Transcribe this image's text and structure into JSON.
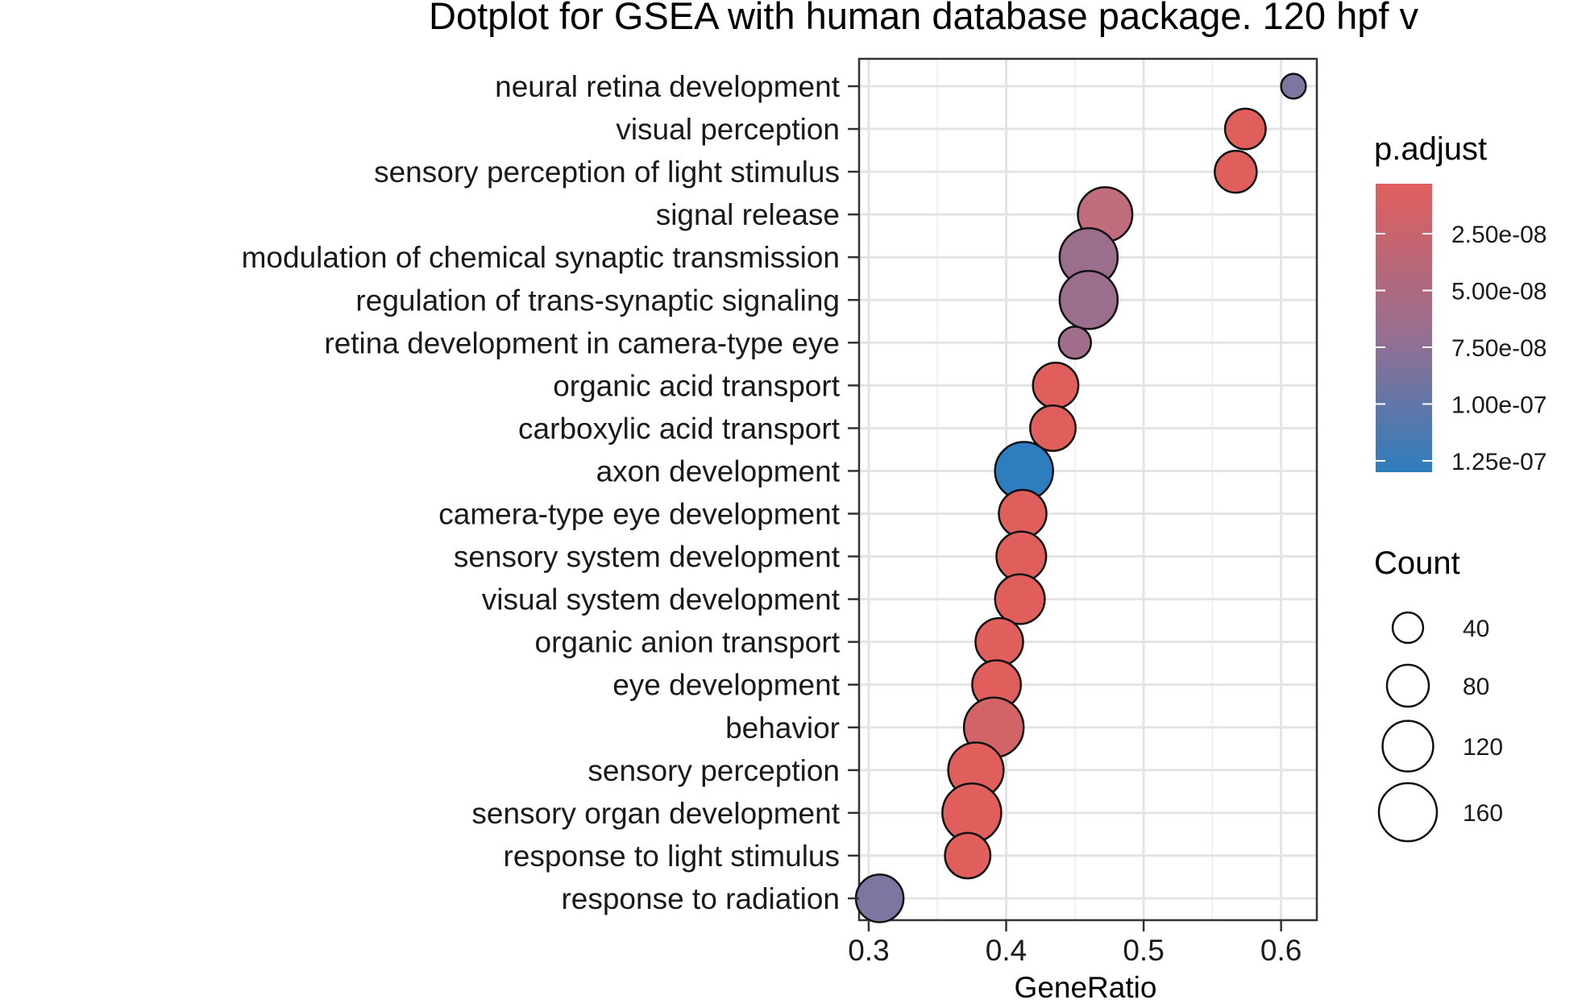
{
  "chart_data": {
    "type": "scatter",
    "title": "Dotplot for GSEA with human database package. 120 hpf v",
    "xlabel": "GeneRatio",
    "ylabel": "",
    "xlim": [
      0.293,
      0.626
    ],
    "xticks": [
      0.3,
      0.4,
      0.5,
      0.6
    ],
    "xtick_labels": [
      "0.3",
      "0.4",
      "0.5",
      "0.6"
    ],
    "grid": true,
    "categories": [
      "neural retina development",
      "visual perception",
      "sensory perception of light stimulus",
      "signal release",
      "modulation of chemical synaptic transmission",
      "regulation of trans-synaptic signaling",
      "retina development in camera-type eye",
      "organic acid transport",
      "carboxylic acid transport",
      "axon development",
      "camera-type eye development",
      "sensory system development",
      "visual system development",
      "organic anion transport",
      "eye development",
      "behavior",
      "sensory perception",
      "sensory organ development",
      "response to light stimulus",
      "response to radiation"
    ],
    "points": [
      {
        "term": "neural retina development",
        "gene_ratio": 0.609,
        "count": 25,
        "p_adjust": 9e-08,
        "color": "#7E75A0"
      },
      {
        "term": "visual perception",
        "gene_ratio": 0.574,
        "count": 75,
        "p_adjust": 3e-09,
        "color": "#E05F5D"
      },
      {
        "term": "sensory perception of light stimulus",
        "gene_ratio": 0.567,
        "count": 80,
        "p_adjust": 5e-09,
        "color": "#E05F5D"
      },
      {
        "term": "signal release",
        "gene_ratio": 0.472,
        "count": 140,
        "p_adjust": 4e-08,
        "color": "#C06C7C"
      },
      {
        "term": "modulation of chemical synaptic transmission",
        "gene_ratio": 0.46,
        "count": 160,
        "p_adjust": 7e-08,
        "color": "#9C6E8E"
      },
      {
        "term": "regulation of trans-synaptic signaling",
        "gene_ratio": 0.46,
        "count": 160,
        "p_adjust": 7e-08,
        "color": "#9C6E8E"
      },
      {
        "term": "retina development in camera-type eye",
        "gene_ratio": 0.45,
        "count": 45,
        "p_adjust": 6.5e-08,
        "color": "#A06E8A"
      },
      {
        "term": "organic acid transport",
        "gene_ratio": 0.436,
        "count": 95,
        "p_adjust": 8e-09,
        "color": "#E05F5D"
      },
      {
        "term": "carboxylic acid transport",
        "gene_ratio": 0.434,
        "count": 95,
        "p_adjust": 8e-09,
        "color": "#E05F5D"
      },
      {
        "term": "axon development",
        "gene_ratio": 0.413,
        "count": 160,
        "p_adjust": 1.3e-07,
        "color": "#2E7DBE"
      },
      {
        "term": "camera-type eye development",
        "gene_ratio": 0.412,
        "count": 105,
        "p_adjust": 4e-09,
        "color": "#E05F5D"
      },
      {
        "term": "sensory system development",
        "gene_ratio": 0.411,
        "count": 115,
        "p_adjust": 4e-09,
        "color": "#E05F5D"
      },
      {
        "term": "visual system development",
        "gene_ratio": 0.41,
        "count": 115,
        "p_adjust": 4e-09,
        "color": "#E05F5D"
      },
      {
        "term": "organic anion transport",
        "gene_ratio": 0.395,
        "count": 105,
        "p_adjust": 8e-09,
        "color": "#E05F5D"
      },
      {
        "term": "eye development",
        "gene_ratio": 0.393,
        "count": 110,
        "p_adjust": 4e-09,
        "color": "#E05F5D"
      },
      {
        "term": "behavior",
        "gene_ratio": 0.391,
        "count": 170,
        "p_adjust": 2e-08,
        "color": "#D26468"
      },
      {
        "term": "sensory perception",
        "gene_ratio": 0.378,
        "count": 145,
        "p_adjust": 3e-09,
        "color": "#E05F5D"
      },
      {
        "term": "sensory organ development",
        "gene_ratio": 0.375,
        "count": 165,
        "p_adjust": 3e-09,
        "color": "#E05F5D"
      },
      {
        "term": "response to light stimulus",
        "gene_ratio": 0.372,
        "count": 95,
        "p_adjust": 5e-09,
        "color": "#E05F5D"
      },
      {
        "term": "response to radiation",
        "gene_ratio": 0.308,
        "count": 105,
        "p_adjust": 9.5e-08,
        "color": "#7E75A0"
      }
    ],
    "legend_color": {
      "title": "p.adjust",
      "labels": [
        "2.50e-08",
        "5.00e-08",
        "7.50e-08",
        "1.00e-07",
        "1.25e-07"
      ],
      "values": [
        2.5e-08,
        5e-08,
        7.5e-08,
        1e-07,
        1.25e-07
      ],
      "range": [
        3e-09,
        1.3e-07
      ],
      "color_low": "#E05F5D",
      "color_mid": "#9C6E8E",
      "color_high": "#2E7DBE"
    },
    "legend_size": {
      "title": "Count",
      "labels": [
        "40",
        "80",
        "120",
        "160"
      ],
      "values": [
        40,
        80,
        120,
        160
      ]
    }
  }
}
